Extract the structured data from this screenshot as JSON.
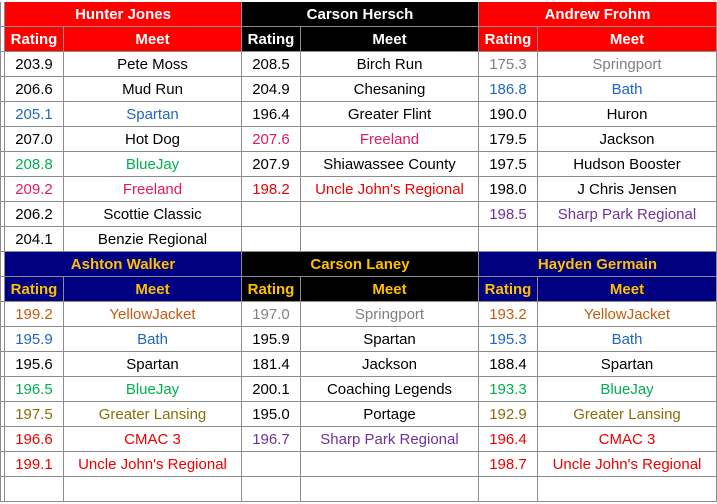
{
  "colors": {
    "red": "#ff0000",
    "black": "#000000",
    "navy": "#000080",
    "white": "#ffffff",
    "gold": "#ffc000",
    "grid_border": "#8c8c8c",
    "text_black": "#000000",
    "text_blue": "#1f67c0",
    "text_green": "#00b050",
    "text_pink": "#e6195f",
    "text_gray": "#808080",
    "text_purple": "#7030a0",
    "text_orange": "#c55a11",
    "text_olive": "#8a6d0b",
    "text_red": "#ee0000"
  },
  "blocks": [
    {
      "name": "Hunter Jones",
      "rating_label": "Rating",
      "meet_label": "Meet",
      "name_bg": "#ff0000",
      "name_color": "#ffffff",
      "head_bg": "#ff0000",
      "head_color": "#ffffff",
      "rows": [
        {
          "rating": "203.9",
          "meet": "Pete Moss",
          "color": "#000000"
        },
        {
          "rating": "206.6",
          "meet": "Mud Run",
          "color": "#000000"
        },
        {
          "rating": "205.1",
          "meet": "Spartan",
          "color": "#1f67c0"
        },
        {
          "rating": "207.0",
          "meet": "Hot Dog",
          "color": "#000000"
        },
        {
          "rating": "208.8",
          "meet": "BlueJay",
          "color": "#00b050"
        },
        {
          "rating": "209.2",
          "meet": "Freeland",
          "color": "#e6195f"
        },
        {
          "rating": "206.2",
          "meet": "Scottie Classic",
          "color": "#000000"
        },
        {
          "rating": "204.1",
          "meet": "Benzie Regional",
          "color": "#000000"
        }
      ]
    },
    {
      "name": "Carson Hersch",
      "rating_label": "Rating",
      "meet_label": "Meet",
      "name_bg": "#000000",
      "name_color": "#ffffff",
      "head_bg": "#000000",
      "head_color": "#ffffff",
      "rows": [
        {
          "rating": "208.5",
          "meet": "Birch Run",
          "color": "#000000"
        },
        {
          "rating": "204.9",
          "meet": "Chesaning",
          "color": "#000000"
        },
        {
          "rating": "196.4",
          "meet": "Greater Flint",
          "color": "#000000"
        },
        {
          "rating": "207.6",
          "meet": "Freeland",
          "color": "#e6195f"
        },
        {
          "rating": "207.9",
          "meet": "Shiawassee County",
          "color": "#000000"
        },
        {
          "rating": "198.2",
          "meet": "Uncle John's Regional",
          "color": "#ee0000"
        },
        {
          "rating": "",
          "meet": "",
          "color": "#000000"
        },
        {
          "rating": "",
          "meet": "",
          "color": "#000000"
        }
      ]
    },
    {
      "name": "Andrew Frohm",
      "rating_label": "Rating",
      "meet_label": "Meet",
      "name_bg": "#ff0000",
      "name_color": "#ffffff",
      "head_bg": "#ff0000",
      "head_color": "#ffffff",
      "rows": [
        {
          "rating": "175.3",
          "meet": "Springport",
          "color": "#808080"
        },
        {
          "rating": "186.8",
          "meet": "Bath",
          "color": "#1f67c0"
        },
        {
          "rating": "190.0",
          "meet": "Huron",
          "color": "#000000"
        },
        {
          "rating": "179.5",
          "meet": "Jackson",
          "color": "#000000"
        },
        {
          "rating": "197.5",
          "meet": "Hudson Booster",
          "color": "#000000"
        },
        {
          "rating": "198.0",
          "meet": "J Chris Jensen",
          "color": "#000000"
        },
        {
          "rating": "198.5",
          "meet": "Sharp Park Regional",
          "color": "#7030a0"
        },
        {
          "rating": "",
          "meet": "",
          "color": "#000000"
        }
      ]
    },
    {
      "name": "Ashton Walker",
      "rating_label": "Rating",
      "meet_label": "Meet",
      "name_bg": "#000080",
      "name_color": "#ffc000",
      "head_bg": "#000080",
      "head_color": "#ffc000",
      "rows": [
        {
          "rating": "199.2",
          "meet": "YellowJacket",
          "color": "#c55a11"
        },
        {
          "rating": "195.9",
          "meet": "Bath",
          "color": "#1f67c0"
        },
        {
          "rating": "195.6",
          "meet": "Spartan",
          "color": "#000000"
        },
        {
          "rating": "196.5",
          "meet": "BlueJay",
          "color": "#00b050"
        },
        {
          "rating": "197.5",
          "meet": "Greater Lansing",
          "color": "#8a6d0b"
        },
        {
          "rating": "196.6",
          "meet": "CMAC 3",
          "color": "#ee0000"
        },
        {
          "rating": "199.1",
          "meet": "Uncle John's Regional",
          "color": "#ee0000"
        },
        {
          "rating": "",
          "meet": "",
          "color": "#000000"
        }
      ]
    },
    {
      "name": "Carson Laney",
      "rating_label": "Rating",
      "meet_label": "Meet",
      "name_bg": "#000000",
      "name_color": "#ffc000",
      "head_bg": "#000000",
      "head_color": "#ffc000",
      "rows": [
        {
          "rating": "197.0",
          "meet": "Springport",
          "color": "#808080"
        },
        {
          "rating": "195.9",
          "meet": "Spartan",
          "color": "#000000"
        },
        {
          "rating": "181.4",
          "meet": "Jackson",
          "color": "#000000"
        },
        {
          "rating": "200.1",
          "meet": "Coaching Legends",
          "color": "#000000"
        },
        {
          "rating": "195.0",
          "meet": "Portage",
          "color": "#000000"
        },
        {
          "rating": "196.7",
          "meet": "Sharp Park Regional",
          "color": "#7030a0"
        },
        {
          "rating": "",
          "meet": "",
          "color": "#000000"
        },
        {
          "rating": "",
          "meet": "",
          "color": "#000000"
        }
      ]
    },
    {
      "name": "Hayden Germain",
      "rating_label": "Rating",
      "meet_label": "Meet",
      "name_bg": "#000080",
      "name_color": "#ffc000",
      "head_bg": "#000080",
      "head_color": "#ffc000",
      "rows": [
        {
          "rating": "193.2",
          "meet": "YellowJacket",
          "color": "#c55a11"
        },
        {
          "rating": "195.3",
          "meet": "Bath",
          "color": "#1f67c0"
        },
        {
          "rating": "188.4",
          "meet": "Spartan",
          "color": "#000000"
        },
        {
          "rating": "193.3",
          "meet": "BlueJay",
          "color": "#00b050"
        },
        {
          "rating": "192.9",
          "meet": "Greater Lansing",
          "color": "#8a6d0b"
        },
        {
          "rating": "196.4",
          "meet": "CMAC 3",
          "color": "#ee0000"
        },
        {
          "rating": "198.7",
          "meet": "Uncle John's Regional",
          "color": "#ee0000"
        },
        {
          "rating": "",
          "meet": "",
          "color": "#000000"
        }
      ]
    }
  ]
}
